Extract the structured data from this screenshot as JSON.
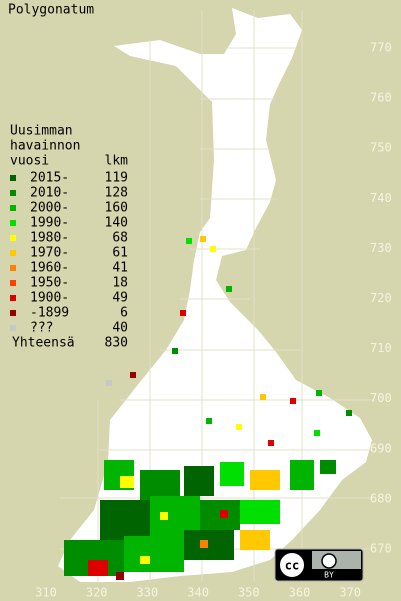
{
  "title": "Polygonatum",
  "legend": {
    "heading": [
      "Uusimman",
      "havainnon"
    ],
    "col_year": "vuosi",
    "col_count": "lkm",
    "rows": [
      {
        "label": "2015-",
        "count": "119",
        "color": "#006400"
      },
      {
        "label": "2010-",
        "count": "128",
        "color": "#008c00"
      },
      {
        "label": "2000-",
        "count": "160",
        "color": "#00b400"
      },
      {
        "label": "1990-",
        "count": "140",
        "color": "#00e000"
      },
      {
        "label": "1980-",
        "count": "68",
        "color": "#ffff00"
      },
      {
        "label": "1970-",
        "count": "61",
        "color": "#ffc800"
      },
      {
        "label": "1960-",
        "count": "41",
        "color": "#ff8000"
      },
      {
        "label": "1950-",
        "count": "18",
        "color": "#ff4000"
      },
      {
        "label": "1900-",
        "count": "49",
        "color": "#dc0000"
      },
      {
        "label": "-1899",
        "count": "6",
        "color": "#960000"
      },
      {
        "label": "???",
        "count": "40",
        "color": "#c8c8c8"
      }
    ],
    "total_label": "Yhteensä",
    "total": "830"
  },
  "x_axis": {
    "ticks": [
      "310",
      "320",
      "330",
      "340",
      "350",
      "360",
      "370"
    ]
  },
  "y_axis": {
    "ticks": [
      "670",
      "680",
      "690",
      "700",
      "710",
      "720",
      "730",
      "740",
      "750",
      "760",
      "770"
    ]
  },
  "license": {
    "cc": "cc",
    "by": "BY"
  }
}
